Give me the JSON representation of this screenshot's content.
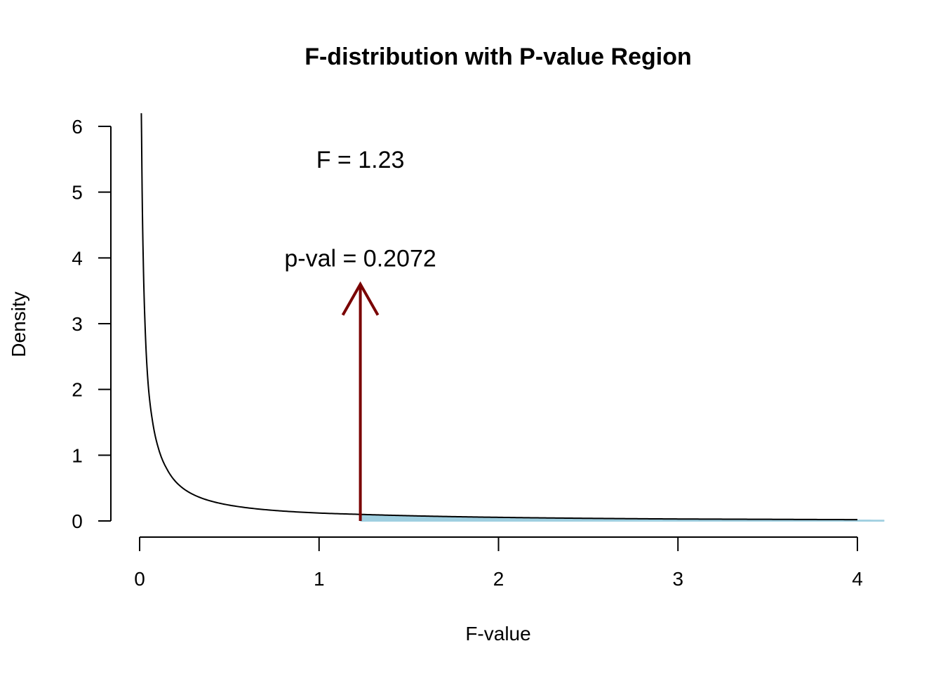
{
  "chart_data": {
    "type": "line",
    "title": "F-distribution with P-value Region",
    "xlabel": "F-value",
    "ylabel": "Density",
    "xlim": [
      0,
      4
    ],
    "ylim": [
      0,
      6
    ],
    "x_ticks": [
      "0",
      "1",
      "2",
      "3",
      "4"
    ],
    "y_ticks": [
      "0",
      "1",
      "2",
      "3",
      "4",
      "5",
      "6"
    ],
    "series": [
      {
        "x": [
          0.01,
          0.02,
          0.03,
          0.05,
          0.07,
          0.1,
          0.15,
          0.2,
          0.3,
          0.4,
          0.5,
          0.6,
          0.8,
          1.0,
          1.23,
          1.5,
          2.0,
          2.5,
          3.0,
          3.5,
          4.0
        ],
        "y": [
          6.2,
          4.0,
          3.0,
          2.0,
          1.55,
          1.15,
          0.8,
          0.6,
          0.4,
          0.3,
          0.24,
          0.2,
          0.15,
          0.12,
          0.1,
          0.08,
          0.055,
          0.04,
          0.03,
          0.025,
          0.02
        ]
      }
    ],
    "shaded_region": {
      "from": 1.23,
      "to": 4.15,
      "color": "#9fcfe0"
    },
    "arrow": {
      "x": 1.23,
      "y_from": 0,
      "y_to": 3.6,
      "color": "#7a0000"
    },
    "annotations": [
      {
        "text": "F = 1.23",
        "x": 1.23,
        "y": 5.5
      },
      {
        "text": "p-val = 0.2072",
        "x": 1.23,
        "y": 4.0
      }
    ],
    "colors": {
      "curve": "#000000",
      "shade": "#9fcfe0",
      "arrow": "#7a0000"
    }
  }
}
